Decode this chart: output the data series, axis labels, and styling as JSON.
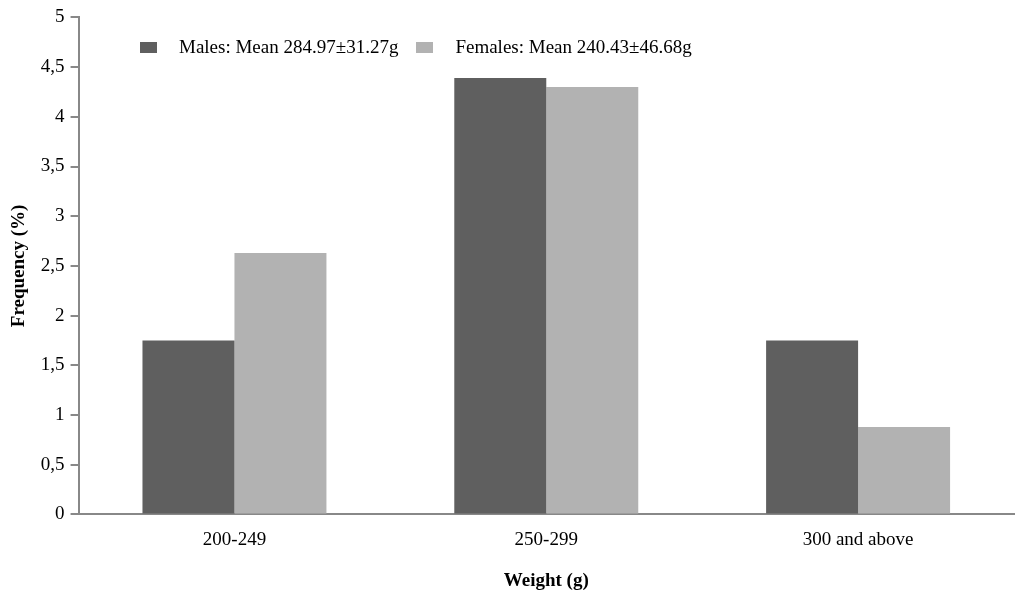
{
  "chart_data": {
    "type": "bar",
    "xlabel": "Weight (g)",
    "ylabel": "Frequency (%)",
    "categories": [
      "200-249",
      "250-299",
      "300 and above"
    ],
    "series": [
      {
        "name": "Males: Mean 284.97±31.27g",
        "color": "#5f5f5f",
        "values": [
          1.75,
          4.39,
          1.75
        ]
      },
      {
        "name": "Females: Mean 240.43±46.68g",
        "color": "#b2b2b2",
        "values": [
          2.63,
          4.3,
          0.88
        ]
      }
    ],
    "ylim": [
      0,
      5
    ],
    "yticks": [
      0,
      {
        "value": 0.5,
        "label": "0,5"
      },
      1,
      {
        "value": 1.5,
        "label": "1,5"
      },
      2,
      {
        "value": 2.5,
        "label": "2,5"
      },
      3,
      {
        "value": 3.5,
        "label": "3,5"
      },
      4,
      {
        "value": 4.5,
        "label": "4,5"
      },
      5
    ],
    "grid": false,
    "legend": "top"
  }
}
